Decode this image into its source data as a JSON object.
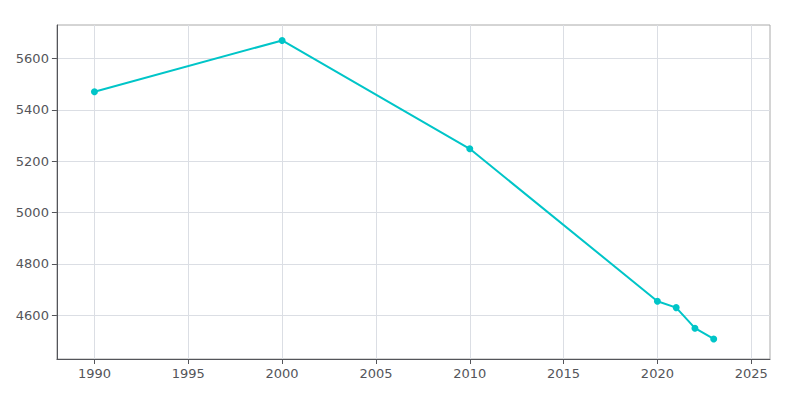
{
  "chart_data": {
    "type": "line",
    "x": [
      1990,
      2000,
      2010,
      2020,
      2021,
      2022,
      2023
    ],
    "values": [
      5470,
      5670,
      5248,
      4655,
      4630,
      4550,
      4508
    ],
    "color": "#00C5C8",
    "marker": "circle",
    "xlim": [
      1988,
      2026
    ],
    "ylim": [
      4430,
      5730
    ],
    "xticks": [
      1990,
      1995,
      2000,
      2005,
      2010,
      2015,
      2020,
      2025
    ],
    "yticks": [
      4600,
      4800,
      5000,
      5200,
      5400,
      5600
    ],
    "grid": true
  }
}
